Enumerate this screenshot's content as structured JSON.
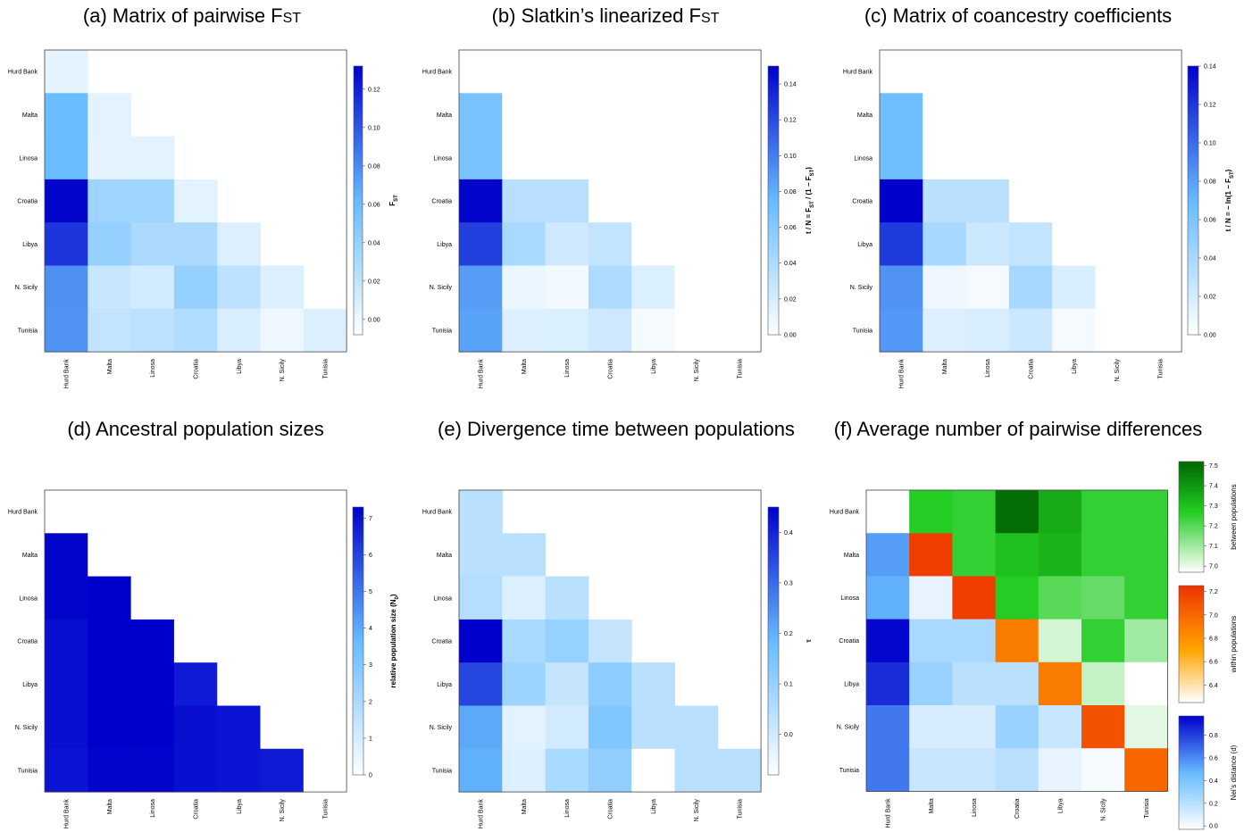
{
  "chart_data": [
    {
      "id": "a",
      "type": "heatmap",
      "title_main": "(a) Matrix of pairwise F",
      "title_sub": "ST",
      "categories": [
        "Hurd Bank",
        "Malta",
        "Linosa",
        "Croatia",
        "Libya",
        "N. Sicily",
        "Tunisia"
      ],
      "values": [
        [
          0.004
        ],
        [
          0.06,
          0.005
        ],
        [
          0.061,
          0.004,
          0.005
        ],
        [
          0.13,
          0.036,
          0.036,
          0.005
        ],
        [
          0.112,
          0.04,
          0.03,
          0.03,
          0.008
        ],
        [
          0.078,
          0.017,
          0.013,
          0.04,
          0.022,
          0.008
        ],
        [
          0.077,
          0.02,
          0.023,
          0.028,
          0.01,
          0.0,
          0.008
        ]
      ],
      "colorbar": {
        "ylim": [
          -0.008,
          0.132
        ],
        "ticks": [
          "0.00",
          "0.02",
          "0.04",
          "0.06",
          "0.08",
          "0.10",
          "0.12"
        ],
        "label_main": "F",
        "label_sub": "ST"
      }
    },
    {
      "id": "b",
      "type": "heatmap",
      "title_main": "(b) Slatkin’s linearized F",
      "title_sub": "ST",
      "categories": [
        "Hurd Bank",
        "Malta",
        "Linosa",
        "Croatia",
        "Libya",
        "N. Sicily",
        "Tunisia"
      ],
      "values": [
        [
          0.0
        ],
        [
          0.066,
          0.0
        ],
        [
          0.066,
          0.0,
          0.0
        ],
        [
          0.148,
          0.035,
          0.035,
          0.0
        ],
        [
          0.125,
          0.042,
          0.024,
          0.03,
          0.0
        ],
        [
          0.087,
          0.01,
          0.006,
          0.04,
          0.018,
          0.0
        ],
        [
          0.085,
          0.016,
          0.018,
          0.024,
          0.005,
          0.0,
          0.0
        ]
      ],
      "colorbar": {
        "ylim": [
          0,
          0.15
        ],
        "ticks": [
          "0.00",
          "0.02",
          "0.04",
          "0.06",
          "0.08",
          "0.10",
          "0.12",
          "0.14"
        ],
        "label": "t / N = F_ST / (1 − F_ST)"
      }
    },
    {
      "id": "c",
      "type": "heatmap",
      "title_main": "(c) Matrix of coancestry coefficients",
      "title_sub": "",
      "categories": [
        "Hurd Bank",
        "Malta",
        "Linosa",
        "Croatia",
        "Libya",
        "N. Sicily",
        "Tunisia"
      ],
      "values": [
        [
          0.0
        ],
        [
          0.066,
          0.0
        ],
        [
          0.066,
          0.0,
          0.0
        ],
        [
          0.14,
          0.032,
          0.032,
          0.0
        ],
        [
          0.118,
          0.04,
          0.024,
          0.028,
          0.0
        ],
        [
          0.085,
          0.008,
          0.005,
          0.04,
          0.018,
          0.0
        ],
        [
          0.083,
          0.016,
          0.018,
          0.024,
          0.005,
          0.0,
          0.0
        ]
      ],
      "colorbar": {
        "ylim": [
          0,
          0.14
        ],
        "ticks": [
          "0.00",
          "0.02",
          "0.04",
          "0.06",
          "0.08",
          "0.10",
          "0.12",
          "0.14"
        ],
        "label": "t / N = − ln(1 − F_ST)"
      }
    },
    {
      "id": "d",
      "type": "heatmap",
      "title_main": "(d) Ancestral population sizes",
      "title_sub": "",
      "categories": [
        "Hurd Bank",
        "Malta",
        "Linosa",
        "Croatia",
        "Libya",
        "N. Sicily",
        "Tunisia"
      ],
      "values": [
        [
          0.0
        ],
        [
          7.2,
          0.0
        ],
        [
          7.2,
          7.3,
          0.0
        ],
        [
          7.0,
          7.3,
          7.3,
          0.0
        ],
        [
          7.0,
          7.3,
          7.3,
          6.8,
          0.0
        ],
        [
          7.0,
          7.3,
          7.3,
          7.0,
          6.9,
          0.0
        ],
        [
          6.9,
          7.2,
          7.2,
          7.0,
          6.9,
          6.8,
          0.0
        ]
      ],
      "colorbar": {
        "ylim": [
          0,
          7.3
        ],
        "ticks": [
          "0",
          "1",
          "2",
          "3",
          "4",
          "5",
          "6",
          "7"
        ],
        "label": "relative population size (N0)"
      }
    },
    {
      "id": "e",
      "type": "heatmap",
      "title_main": "(e) Divergence time between populations",
      "title_sub": "",
      "categories": [
        "Hurd Bank",
        "Malta",
        "Linosa",
        "Croatia",
        "Libya",
        "N. Sicily",
        "Tunisia"
      ],
      "values": [
        [
          0.04
        ],
        [
          0.04,
          0.04
        ],
        [
          0.05,
          -0.02,
          0.04
        ],
        [
          0.45,
          0.07,
          0.1,
          0.02
        ],
        [
          0.35,
          0.09,
          0.02,
          0.12,
          0.04
        ],
        [
          0.21,
          -0.03,
          0.0,
          0.14,
          0.04,
          0.04
        ],
        [
          0.2,
          -0.02,
          0.07,
          0.11,
          -0.08,
          0.04,
          0.04
        ]
      ],
      "colorbar": {
        "ylim": [
          -0.08,
          0.45
        ],
        "ticks": [
          "0.0",
          "0.1",
          "0.2",
          "0.3",
          "0.4"
        ],
        "label": "τ"
      }
    },
    {
      "id": "f",
      "type": "heatmap",
      "title_main": "(f) Average number of pairwise differences",
      "title_sub": "",
      "categories": [
        "Hurd Bank",
        "Malta",
        "Linosa",
        "Croatia",
        "Libya",
        "N. Sicily",
        "Tunisia"
      ],
      "between": [
        [
          null,
          7.27,
          7.25,
          7.5,
          7.35,
          7.25,
          7.25
        ],
        [
          null,
          null,
          7.25,
          7.3,
          7.33,
          7.25,
          7.25
        ],
        [
          null,
          null,
          null,
          7.27,
          7.2,
          7.18,
          7.25
        ],
        [
          null,
          null,
          null,
          null,
          7.03,
          7.25,
          7.1
        ],
        [
          null,
          null,
          null,
          null,
          null,
          7.05,
          null
        ],
        [
          null,
          null,
          null,
          null,
          null,
          null,
          7.01
        ],
        [
          null,
          null,
          null,
          null,
          null,
          null,
          null
        ]
      ],
      "within": [
        null,
        7.2,
        7.2,
        6.9,
        6.9,
        7.1,
        7.0
      ],
      "nei_lower": [
        [],
        [
          0.55
        ],
        [
          0.5,
          0.05
        ],
        [
          0.95,
          0.25,
          0.25
        ],
        [
          0.85,
          0.3,
          0.2,
          0.2
        ],
        [
          0.65,
          0.1,
          0.1,
          0.3,
          0.15
        ],
        [
          0.65,
          0.15,
          0.15,
          0.2,
          0.05,
          0.0
        ]
      ],
      "colorbars": [
        {
          "ylim": [
            6.97,
            7.52
          ],
          "ticks": [
            "7.0",
            "7.1",
            "7.2",
            "7.3",
            "7.4",
            "7.5"
          ],
          "label": "between populations"
        },
        {
          "ylim": [
            6.25,
            7.25
          ],
          "ticks": [
            "6.4",
            "6.6",
            "6.8",
            "7.0",
            "7.2"
          ],
          "label": "within populations"
        },
        {
          "ylim": [
            -0.03,
            0.97
          ],
          "ticks": [
            "0.0",
            "0.2",
            "0.4",
            "0.6",
            "0.8"
          ],
          "label": "Nei’s distance (d)"
        }
      ]
    }
  ]
}
